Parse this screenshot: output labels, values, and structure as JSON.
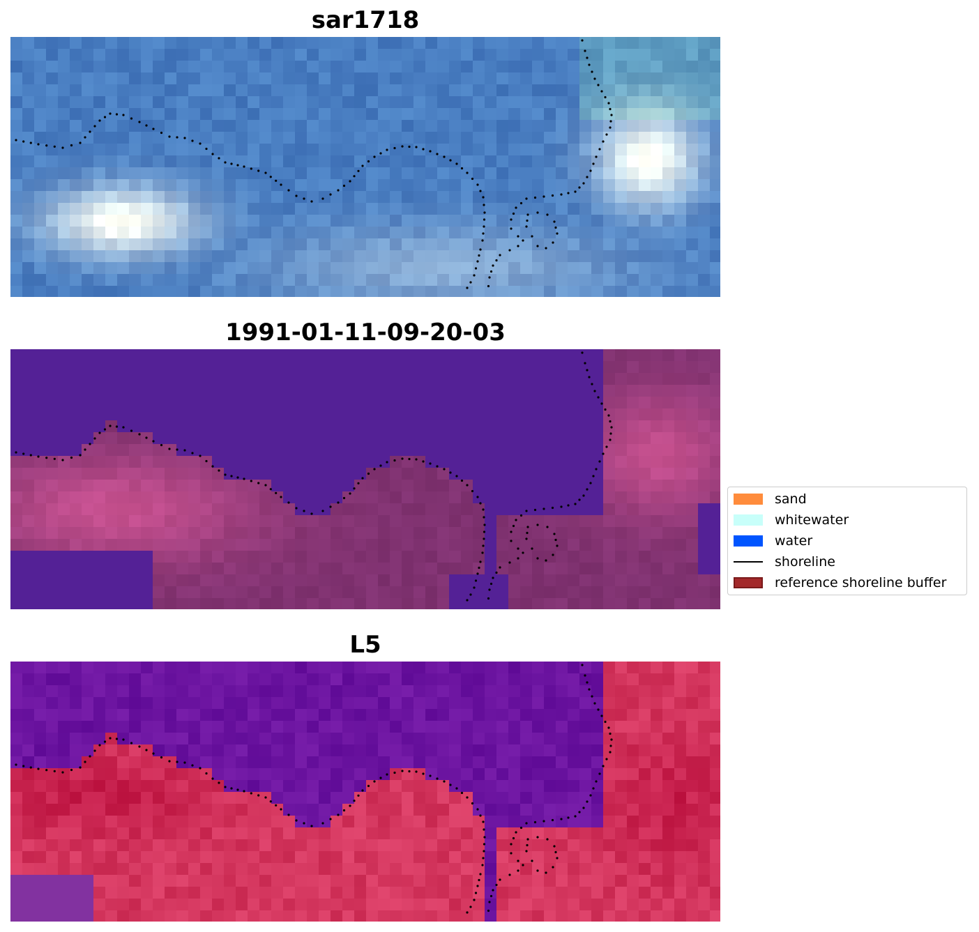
{
  "panels": [
    {
      "title": "sar1718",
      "style": "rgb"
    },
    {
      "title": "1991-01-11-09-20-03",
      "style": "classified"
    },
    {
      "title": "L5",
      "style": "index"
    }
  ],
  "legend": {
    "placement": "center-right",
    "items": [
      {
        "label": "sand",
        "kind": "patch",
        "color": "#ff8c3c"
      },
      {
        "label": "whitewater",
        "kind": "patch",
        "color": "#c8fffa"
      },
      {
        "label": "water",
        "kind": "patch",
        "color": "#0055ff"
      },
      {
        "label": "shoreline",
        "kind": "line",
        "color": "#000000"
      },
      {
        "label": "reference shoreline buffer",
        "kind": "patch",
        "color": "#a3292a",
        "edge": "#7a1a1a"
      }
    ]
  },
  "colors": {
    "water_class": "#542196",
    "shoreline_dots": "#000000"
  }
}
